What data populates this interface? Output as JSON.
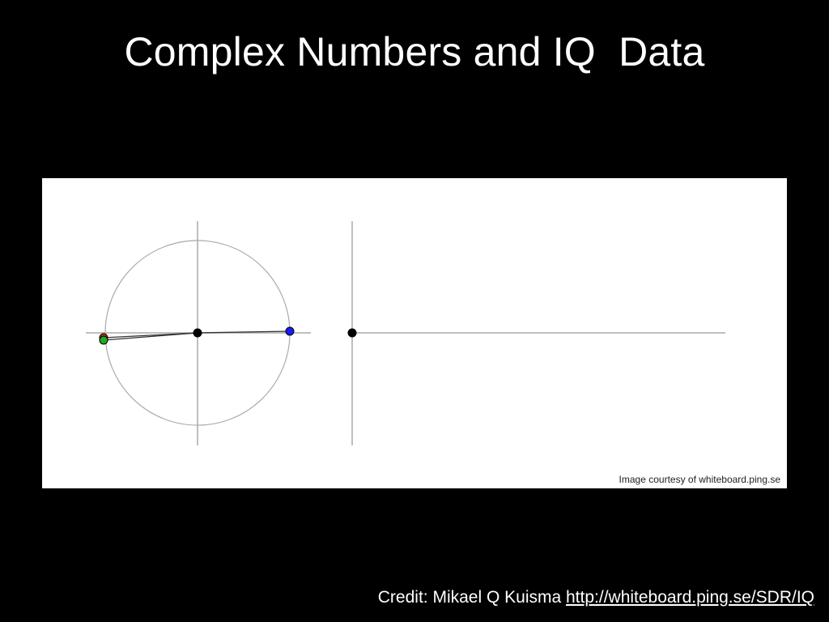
{
  "slide": {
    "title": "Complex Numbers and IQ  Data",
    "background_color": "#000000"
  },
  "figure": {
    "courtesy_text": "Image courtesy of whiteboard.ping.se",
    "colors": {
      "axis": "#aaaaaa",
      "circle": "#aaaaaa",
      "vector": "#333333",
      "origin_dot": "#000000",
      "rotating_point": "#1a1aff",
      "point_green": "#22aa22",
      "point_red": "#cc3311"
    }
  },
  "credit": {
    "prefix": "Credit: Mikael Q Kuisma ",
    "link_text": "http://whiteboard.ping.se/SDR/IQ"
  }
}
